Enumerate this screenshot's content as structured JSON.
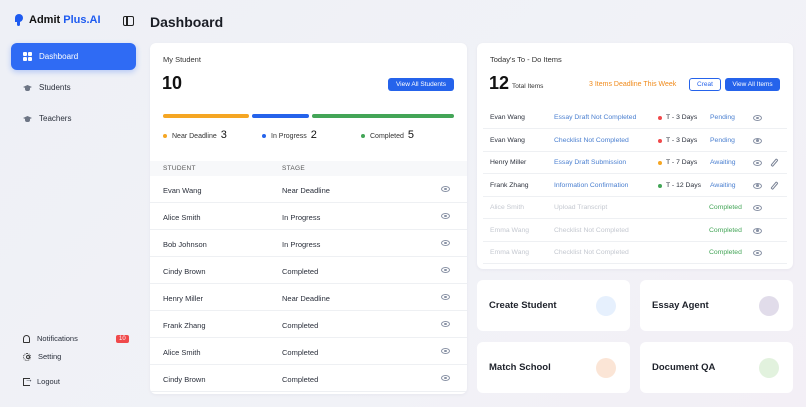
{
  "brand": {
    "name_part1": "Admit ",
    "name_part2": "Plus.AI"
  },
  "page_title": "Dashboard",
  "sidebar": {
    "items": [
      {
        "label": "Dashboard",
        "icon": "grid-icon"
      },
      {
        "label": "Students",
        "icon": "graduation-cap-icon"
      },
      {
        "label": "Teachers",
        "icon": "graduation-cap-icon"
      }
    ],
    "bottom": [
      {
        "label": "Notifications",
        "icon": "bell-icon",
        "badge": "10"
      },
      {
        "label": "Setting",
        "icon": "gear-icon"
      },
      {
        "label": "Logout",
        "icon": "logout-icon"
      }
    ]
  },
  "my_student": {
    "title": "My Student",
    "total": "10",
    "view_all_label": "View All Students",
    "progress": {
      "near_deadline": 3,
      "in_progress": 2,
      "completed": 5
    },
    "legend": [
      {
        "label": "Near Deadline",
        "count": "3",
        "color": "#f5a623"
      },
      {
        "label": "In Progress",
        "count": "2",
        "color": "#2563eb"
      },
      {
        "label": "Completed",
        "count": "5",
        "color": "#43a557"
      }
    ],
    "columns": {
      "student": "STUDENT",
      "stage": "STAGE"
    },
    "rows": [
      {
        "student": "Evan Wang",
        "stage": "Near Deadline"
      },
      {
        "student": "Alice Smith",
        "stage": "In Progress"
      },
      {
        "student": "Bob Johnson",
        "stage": "In Progress"
      },
      {
        "student": "Cindy Brown",
        "stage": "Completed"
      },
      {
        "student": "Henry Miller",
        "stage": "Near Deadline"
      },
      {
        "student": "Frank Zhang",
        "stage": "Completed"
      },
      {
        "student": "Alice Smith",
        "stage": "Completed"
      },
      {
        "student": "Cindy Brown",
        "stage": "Completed"
      }
    ]
  },
  "todo": {
    "title": "Today's To - Do Items",
    "total": "12",
    "total_label": "Total Items",
    "deadline_warning": "3 Items Deadline This Week",
    "create_label": "Creat",
    "view_all_label": "View All Items",
    "items": [
      {
        "name": "Evan Wang",
        "task": "Essay Draft Not Completed",
        "due": "T - 3 Days",
        "due_color": "#f0494b",
        "status": "Pending",
        "editable": false,
        "faded": false
      },
      {
        "name": "Evan Wang",
        "task": "Checklist Not Completed",
        "due": "T - 3 Days",
        "due_color": "#f0494b",
        "status": "Pending",
        "editable": false,
        "faded": false
      },
      {
        "name": "Henry Miller",
        "task": "Essay Draft Submission",
        "due": "T - 7 Days",
        "due_color": "#f5a623",
        "status": "Awaiting",
        "editable": true,
        "faded": false
      },
      {
        "name": "Frank Zhang",
        "task": "Information Confirmation",
        "due": "T - 12 Days",
        "due_color": "#43a557",
        "status": "Awaiting",
        "editable": true,
        "faded": false
      },
      {
        "name": "Alice Smith",
        "task": "Upload Transcript",
        "due": "",
        "due_color": "",
        "status": "Completed",
        "editable": false,
        "faded": true
      },
      {
        "name": "Emma Wang",
        "task": "Checklist Not Completed",
        "due": "",
        "due_color": "",
        "status": "Completed",
        "editable": false,
        "faded": true
      },
      {
        "name": "Emma Wang",
        "task": "Checklist Not Completed",
        "due": "",
        "due_color": "",
        "status": "Completed",
        "editable": false,
        "faded": true
      }
    ]
  },
  "actions": [
    {
      "label": "Create Student",
      "color": "#e6f0fd"
    },
    {
      "label": "Essay Agent",
      "color": "#e1dcea"
    },
    {
      "label": "Match School",
      "color": "#fbe5d6"
    },
    {
      "label": "Document QA",
      "color": "#e2f2de"
    }
  ]
}
